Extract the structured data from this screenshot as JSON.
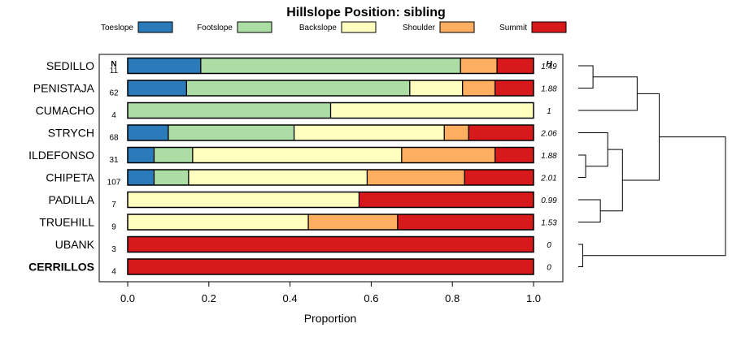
{
  "chart_data": {
    "type": "bar",
    "orientation": "horizontal",
    "stacked": true,
    "title": "Hillslope Position: sibling",
    "xlabel": "Proportion",
    "ylabel": "",
    "xlim": [
      0,
      1
    ],
    "x_ticks": [
      0.0,
      0.2,
      0.4,
      0.6,
      0.8,
      1.0
    ],
    "x_tick_labels": [
      "0.0",
      "0.2",
      "0.4",
      "0.6",
      "0.8",
      "1.0"
    ],
    "legend_position": "top",
    "n_header": "N",
    "h_header": "H",
    "categories": [
      "SEDILLO",
      "PENISTAJA",
      "CUMACHO",
      "STRYCH",
      "ILDEFONSO",
      "CHIPETA",
      "PADILLA",
      "TRUEHILL",
      "UBANK",
      "CERRILLOS"
    ],
    "highlight_category": "CERRILLOS",
    "n_values": [
      "11",
      "62",
      "4",
      "68",
      "31",
      "107",
      "7",
      "9",
      "3",
      "4"
    ],
    "h_values": [
      "1.49",
      "1.88",
      "1",
      "2.06",
      "1.88",
      "2.01",
      "0.99",
      "1.53",
      "0",
      "0"
    ],
    "series": [
      {
        "name": "Toeslope",
        "color": "#2b7bba",
        "values": [
          0.18,
          0.145,
          0,
          0.1,
          0.065,
          0.065,
          0,
          0,
          0,
          0
        ]
      },
      {
        "name": "Footslope",
        "color": "#abdda4",
        "values": [
          0.64,
          0.55,
          0.5,
          0.31,
          0.095,
          0.085,
          0,
          0,
          0,
          0
        ]
      },
      {
        "name": "Backslope",
        "color": "#ffffbf",
        "values": [
          0,
          0.13,
          0.5,
          0.37,
          0.515,
          0.44,
          0.57,
          0.445,
          0,
          0
        ]
      },
      {
        "name": "Shoulder",
        "color": "#fdae61",
        "values": [
          0.09,
          0.08,
          0,
          0.06,
          0.23,
          0.24,
          0,
          0.22,
          0,
          0
        ]
      },
      {
        "name": "Summit",
        "color": "#d7191c",
        "values": [
          0.09,
          0.095,
          0,
          0.16,
          0.095,
          0.17,
          0.43,
          0.335,
          1.0,
          1.0
        ]
      }
    ],
    "dendrogram": {
      "merges": [
        [
          0,
          1
        ],
        [
          "m0",
          2
        ],
        [
          4,
          5
        ],
        [
          3,
          "m2"
        ],
        [
          6,
          7
        ],
        [
          "m3",
          "m4"
        ],
        [
          "m1",
          "m5"
        ],
        [
          8,
          9
        ],
        [
          "m6",
          "m7"
        ]
      ],
      "heights": [
        0.1,
        0.4,
        0.05,
        0.2,
        0.15,
        0.3,
        0.55,
        0.03,
        1.0
      ]
    }
  }
}
